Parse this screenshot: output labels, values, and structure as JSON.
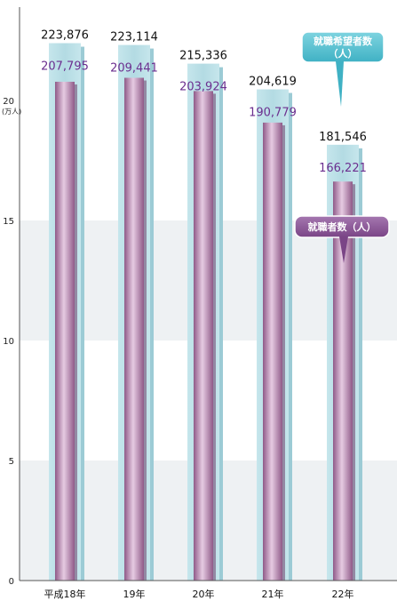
{
  "chart_data": {
    "type": "bar",
    "categories": [
      "平成18年",
      "19年",
      "20年",
      "21年",
      "22年"
    ],
    "series": [
      {
        "name": "就職希望者数（人）",
        "values": [
          223876,
          223114,
          215336,
          204619,
          181546
        ],
        "labels": [
          "223,876",
          "223,114",
          "215,336",
          "204,619",
          "181,546"
        ],
        "color": "#b9dfe6"
      },
      {
        "name": "就職者数（人）",
        "values": [
          207795,
          209441,
          203924,
          190779,
          166221
        ],
        "labels": [
          "207,795",
          "209,441",
          "203,924",
          "190,779",
          "166,221"
        ],
        "color": "#c79ac0"
      }
    ],
    "ylim": [
      0,
      240000
    ],
    "yticks": [
      {
        "value": 0,
        "label": "0"
      },
      {
        "value": 50000,
        "label": "5"
      },
      {
        "value": 100000,
        "label": "10"
      },
      {
        "value": 150000,
        "label": "15"
      },
      {
        "value": 200000,
        "label": "20"
      }
    ],
    "yunit": "(万人)",
    "callouts": {
      "applicants": [
        "就職希望者数",
        "（人）"
      ],
      "employed": "就職者数（人）"
    },
    "colors": {
      "band": "#eef1f3",
      "callout_applicants": "#5cc3d2",
      "callout_employed": "#8e5a9a",
      "employed_label": "#6b2f8f"
    }
  }
}
